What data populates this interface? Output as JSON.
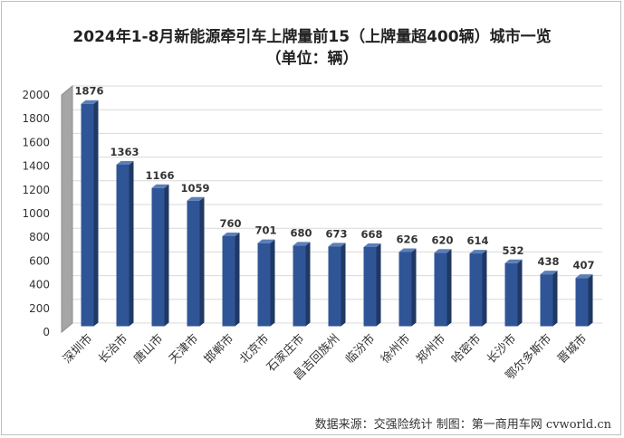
{
  "chart_data": {
    "type": "bar",
    "title": "2024年1-8月新能源牵引车上牌量前15（上牌量超400辆）城市一览",
    "subtitle": "（单位：辆）",
    "categories": [
      "深圳市",
      "长治市",
      "唐山市",
      "天津市",
      "邯郸市",
      "北京市",
      "石家庄市",
      "昌吉回族州",
      "临汾市",
      "徐州市",
      "郑州市",
      "哈密市",
      "长沙市",
      "鄂尔多斯市",
      "晋城市"
    ],
    "values": [
      1876,
      1363,
      1166,
      1059,
      760,
      701,
      680,
      673,
      668,
      626,
      620,
      614,
      532,
      438,
      407
    ],
    "ylim": [
      0,
      2000
    ],
    "yticks": [
      0,
      200,
      400,
      600,
      800,
      1000,
      1200,
      1400,
      1600,
      1800,
      2000
    ],
    "grid": true,
    "colors": {
      "bar_front": "#2f5597",
      "bar_side": "#1f3864",
      "bar_top": "#5b7fb8"
    }
  },
  "source_note": "数据来源：交强险统计  制图：第一商用车网 cvworld.cn"
}
